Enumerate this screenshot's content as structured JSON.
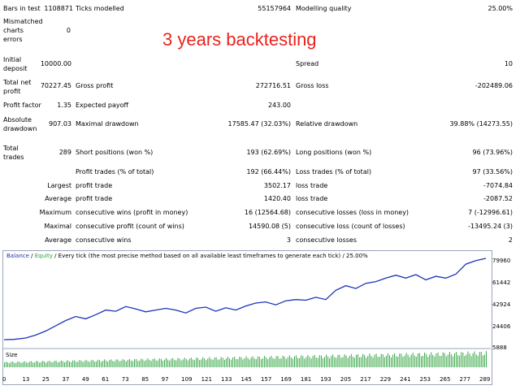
{
  "overlay_title": "3 years backtesting",
  "report": {
    "row1": {
      "bars_label": "Bars in test",
      "bars_value": "1108871",
      "ticks_label": "Ticks modelled",
      "ticks_value": "55157964",
      "quality_label": "Modelling quality",
      "quality_value": "25.00%"
    },
    "row2": {
      "mismatched_label_1": "Mismatched",
      "mismatched_label_2": "charts",
      "mismatched_label_3": "errors",
      "mismatched_value": "0"
    },
    "row3": {
      "initial_label_1": "Initial",
      "initial_label_2": "deposit",
      "initial_value": "10000.00",
      "spread_label": "Spread",
      "spread_value": "10"
    },
    "row4": {
      "netprofit_label_1": "Total net",
      "netprofit_label_2": "profit",
      "netprofit_value": "70227.45",
      "grossprofit_label": "Gross profit",
      "grossprofit_value": "272716.51",
      "grossloss_label": "Gross loss",
      "grossloss_value": "-202489.06"
    },
    "row5": {
      "pf_label": "Profit factor",
      "pf_value": "1.35",
      "ep_label": "Expected payoff",
      "ep_value": "243.00"
    },
    "row6": {
      "absdd_label_1": "Absolute",
      "absdd_label_2": "drawdown",
      "absdd_value": "907.03",
      "maxdd_label": "Maximal drawdown",
      "maxdd_value": "17585.47 (32.03%)",
      "reldd_label": "Relative drawdown",
      "reldd_value": "39.88% (14273.55)"
    },
    "row7": {
      "tt_label_1": "Total",
      "tt_label_2": "trades",
      "tt_value": "289",
      "short_label": "Short positions (won %)",
      "short_value": "193 (62.69%)",
      "long_label": "Long positions (won %)",
      "long_value": "96 (73.96%)"
    },
    "row8": {
      "pt_label": "Profit trades (% of total)",
      "pt_value": "192 (66.44%)",
      "lt_label": "Loss trades (% of total)",
      "lt_value": "97 (33.56%)"
    },
    "row9": {
      "prefix": "Largest",
      "p_label": "profit trade",
      "p_value": "3502.17",
      "l_label": "loss trade",
      "l_value": "-7074.84"
    },
    "row10": {
      "prefix": "Average",
      "p_label": "profit trade",
      "p_value": "1420.40",
      "l_label": "loss trade",
      "l_value": "-2087.52"
    },
    "row11": {
      "prefix": "Maximum",
      "p_label": "consecutive wins (profit in money)",
      "p_value": "16 (12564.68)",
      "l_label": "consecutive losses (loss in money)",
      "l_value": "7 (-12996.61)"
    },
    "row12": {
      "prefix": "Maximal",
      "p_label": "consecutive profit (count of wins)",
      "p_value": "14590.08 (5)",
      "l_label": "consecutive loss (count of losses)",
      "l_value": "-13495.24 (3)"
    },
    "row13": {
      "prefix": "Average",
      "p_label": "consecutive wins",
      "p_value": "3",
      "l_label": "consecutive losses",
      "l_value": "2"
    }
  },
  "chart_header": {
    "balance": "Balance",
    "sep": " / ",
    "equity": "Equity",
    "rest": " / Every tick (the most precise method based on all available least timeframes to generate each tick) / 25.00%"
  },
  "size_label": "Size",
  "chart_data": {
    "type": "line",
    "title": "",
    "series": [
      {
        "name": "Balance",
        "color": "#1d33b8",
        "x": [
          0,
          6,
          13,
          19,
          25,
          31,
          37,
          43,
          49,
          55,
          61,
          67,
          73,
          79,
          85,
          91,
          97,
          103,
          109,
          115,
          121,
          127,
          133,
          139,
          145,
          151,
          157,
          163,
          169,
          175,
          181,
          187,
          193,
          199,
          205,
          211,
          217,
          223,
          229,
          235,
          241,
          247,
          253,
          259,
          265,
          271,
          277,
          283,
          289
        ],
        "y": [
          10000,
          10300,
          11500,
          14000,
          17500,
          22000,
          26500,
          30000,
          28000,
          31500,
          35500,
          34500,
          38500,
          36500,
          34000,
          35500,
          37000,
          35500,
          33000,
          37000,
          38000,
          34500,
          37500,
          35500,
          39000,
          41500,
          42500,
          40000,
          43500,
          44500,
          44000,
          46500,
          44500,
          52500,
          56500,
          54000,
          58500,
          60000,
          63000,
          65500,
          63000,
          66000,
          61500,
          64500,
          63000,
          66500,
          75000,
          78000,
          79960
        ]
      }
    ],
    "y_ticks": [
      "79960",
      "61442",
      "42924",
      "24406",
      "5888"
    ],
    "x_ticks": [
      "0",
      "13",
      "25",
      "37",
      "49",
      "61",
      "73",
      "85",
      "97",
      "109",
      "121",
      "133",
      "145",
      "157",
      "169",
      "181",
      "193",
      "205",
      "217",
      "229",
      "241",
      "253",
      "265",
      "277",
      "289"
    ],
    "ylim": [
      5888,
      79960
    ],
    "xlim": [
      0,
      289
    ],
    "volume_bars": "increasing green lots per trade"
  }
}
